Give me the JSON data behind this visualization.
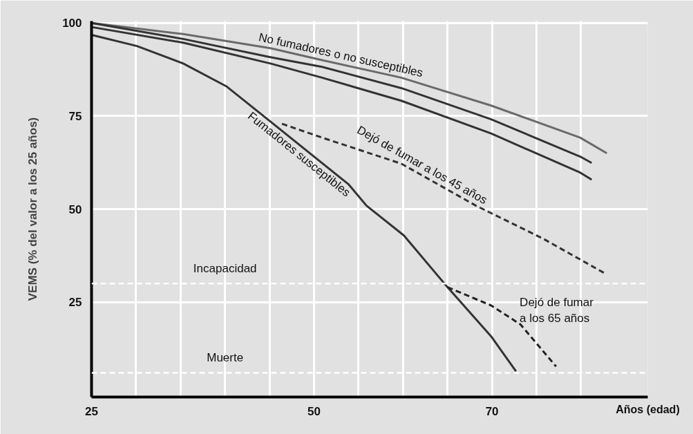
{
  "chart_data": {
    "type": "line",
    "xlabel": "Años (edad)",
    "ylabel": "VEMS (% del valor a los 25 años)",
    "xlim": [
      25,
      87.5
    ],
    "ylim": [
      -0.5,
      100.5
    ],
    "xticks": [
      25,
      {
        "value": 30,
        "label": null
      },
      {
        "value": 35,
        "label": null
      },
      {
        "value": 40,
        "label": null
      },
      {
        "value": 45,
        "label": null
      },
      50,
      {
        "value": 55,
        "label": null
      },
      {
        "value": 60,
        "label": null
      },
      {
        "value": 65,
        "label": null
      },
      70,
      {
        "value": 75,
        "label": null
      },
      {
        "value": 80,
        "label": null
      }
    ],
    "yticks": [
      25,
      50,
      75,
      100
    ],
    "grid": true,
    "line_style": "solid",
    "series": [
      {
        "name": "No fumadores o no susceptibles",
        "color": "#6a6a6a",
        "x": [
          25,
          35.3,
          45.1,
          50.9,
          59.8,
          69.9,
          79.9,
          82.9
        ],
        "values": [
          100,
          97,
          93.2,
          90,
          85.3,
          77.8,
          69.2,
          65
        ]
      },
      {
        "color": "#333333",
        "x": [
          25,
          35.3,
          45.1,
          50.9,
          59.8,
          69.9,
          79.9,
          81.2
        ],
        "values": [
          100,
          95.7,
          90.8,
          88.2,
          82.5,
          74.1,
          64.1,
          62.4
        ]
      },
      {
        "color": "#333333",
        "x": [
          25,
          35.3,
          45.1,
          50.9,
          59.8,
          69.9,
          79.9,
          81.2
        ],
        "values": [
          98.9,
          94.7,
          89.1,
          85.3,
          79.1,
          70.3,
          59.8,
          57.9
        ]
      },
      {
        "name": "Fumadores susceptibles",
        "color": "#333333",
        "x": [
          25,
          30.1,
          35.3,
          40.2,
          45.1,
          53.9,
          55.9,
          60.1,
          65,
          69.9,
          72.7
        ],
        "values": [
          96.8,
          93.8,
          89.1,
          82.9,
          73.5,
          56.6,
          50.9,
          42.9,
          29,
          15.8,
          6.4
        ]
      },
      {
        "name": "Dejó de fumar a los 45 años",
        "color": "#333333",
        "line_style": "dashed",
        "x": [
          46.4,
          50.9,
          59.8,
          68.2,
          75.7,
          82.7
        ],
        "values": [
          72.9,
          69.2,
          62.2,
          50.9,
          42.1,
          32.7
        ]
      },
      {
        "name": "Dejó de fumar a los 65 años",
        "color": "#222222",
        "line_style": "dashed",
        "x": [
          65,
          69.9,
          73.2,
          77.2
        ],
        "values": [
          29,
          24.1,
          19,
          7.7
        ]
      }
    ],
    "ref_lines": [
      {
        "axis": "y",
        "value": 30,
        "label": "Incapacidad",
        "color": "#ffffff",
        "line_style": "dashed"
      },
      {
        "axis": "y",
        "value": 6,
        "label": "Muerte",
        "color": "#ffffff",
        "line_style": "dashed"
      }
    ]
  }
}
